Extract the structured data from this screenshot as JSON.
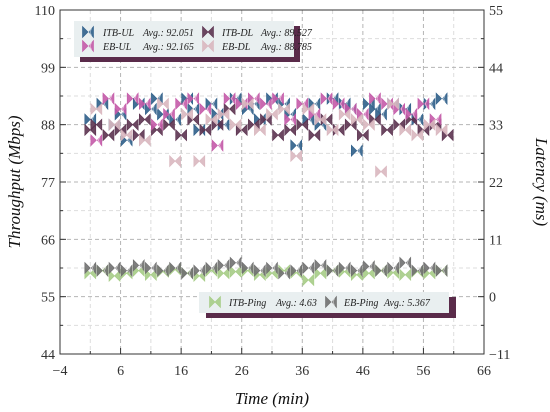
{
  "chart_data": {
    "type": "scatter",
    "xlabel": "Time (min)",
    "ylabel_left": "Throughput (Mbps)",
    "ylabel_right": "Latency (ms)",
    "xlim": [
      -4,
      66
    ],
    "ylim_left": [
      44,
      110
    ],
    "ylim_right": [
      -11,
      55
    ],
    "xticks": [
      "−4",
      "6",
      "16",
      "26",
      "36",
      "46",
      "56",
      "66"
    ],
    "yticks_left": [
      "44",
      "55",
      "66",
      "77",
      "88",
      "99",
      "110"
    ],
    "yticks_right": [
      "−11",
      "0",
      "11",
      "22",
      "33",
      "44",
      "55"
    ],
    "grid": true,
    "legends": {
      "throughput": "top-left",
      "ping": "bottom-right"
    },
    "series": [
      {
        "name": "ITB-UL",
        "avg_label": "Avg.: 92.051",
        "axis": "left",
        "color": "#2f5f8a",
        "marker": "left-bowtie",
        "x": [
          1,
          3,
          5,
          6,
          7,
          9,
          11,
          12,
          13,
          15,
          17,
          18,
          19,
          21,
          22,
          23,
          25,
          27,
          28,
          29,
          31,
          33,
          34,
          35,
          37,
          38,
          39,
          41,
          43,
          44,
          45,
          47,
          48,
          49,
          51,
          53,
          55,
          57,
          59
        ],
        "y": [
          89,
          92,
          88,
          90,
          85,
          92,
          91,
          93,
          90,
          89,
          93,
          91,
          87,
          92,
          90,
          88,
          93,
          91,
          92,
          89,
          93,
          92,
          90,
          84,
          89,
          92,
          88,
          93,
          92,
          91,
          83,
          92,
          91,
          90,
          92,
          91,
          89,
          92,
          93
        ]
      },
      {
        "name": "ITB-DL",
        "avg_label": "Avg.: 89.527",
        "axis": "left",
        "color": "#5c3350",
        "marker": "bowtie",
        "x": [
          1,
          2,
          4,
          6,
          8,
          9,
          10,
          12,
          14,
          16,
          18,
          20,
          22,
          24,
          26,
          28,
          30,
          32,
          34,
          36,
          38,
          40,
          42,
          44,
          46,
          48,
          50,
          52,
          54,
          56,
          58,
          60
        ],
        "y": [
          87,
          88,
          86,
          87,
          88,
          86,
          89,
          87,
          88,
          86,
          89,
          87,
          88,
          91,
          87,
          88,
          89,
          86,
          87,
          88,
          86,
          89,
          87,
          88,
          86,
          89,
          87,
          88,
          89,
          87,
          88,
          86
        ]
      },
      {
        "name": "EB-UL",
        "avg_label": "Avg.: 92.165",
        "axis": "left",
        "color": "#c45aa8",
        "marker": "left-bowtie",
        "x": [
          2,
          4,
          6,
          8,
          10,
          12,
          14,
          16,
          18,
          20,
          22,
          24,
          26,
          28,
          30,
          32,
          34,
          36,
          38,
          40,
          42,
          44,
          46,
          48,
          50,
          52,
          54,
          56,
          58
        ],
        "y": [
          85,
          93,
          91,
          93,
          92,
          88,
          90,
          92,
          93,
          91,
          84,
          93,
          92,
          93,
          92,
          93,
          89,
          92,
          90,
          93,
          92,
          91,
          90,
          93,
          92,
          91,
          90,
          92,
          89
        ]
      },
      {
        "name": "EB-DL",
        "avg_label": "Avg.: 88.785",
        "axis": "left",
        "color": "#d9b7bf",
        "marker": "bowtie",
        "x": [
          2,
          5,
          7,
          10,
          13,
          15,
          17,
          19,
          21,
          23,
          25,
          27,
          29,
          31,
          33,
          35,
          37,
          39,
          41,
          43,
          45,
          47,
          49,
          51,
          53,
          55,
          57,
          59
        ],
        "y": [
          91,
          88,
          86,
          85,
          92,
          81,
          90,
          81,
          89,
          90,
          88,
          92,
          87,
          90,
          91,
          82,
          91,
          89,
          87,
          90,
          89,
          88,
          79,
          92,
          87,
          86,
          88,
          87
        ]
      },
      {
        "name": "ITB-Ping",
        "avg_label": "Avg.: 4.63",
        "axis": "right",
        "color": "#a6cc86",
        "marker": "bowtie",
        "x": [
          1,
          3,
          5,
          7,
          9,
          11,
          13,
          15,
          17,
          19,
          21,
          23,
          25,
          27,
          29,
          31,
          33,
          35,
          37,
          39,
          41,
          43,
          45,
          47,
          49,
          51,
          53,
          55,
          57,
          59
        ],
        "y": [
          4.5,
          5,
          4,
          4.5,
          5,
          4.2,
          4.8,
          5.2,
          4.5,
          4,
          5,
          4.5,
          4.8,
          5,
          4.2,
          4.5,
          5,
          4.6,
          3.2,
          4.5,
          5,
          4.8,
          4.2,
          4.5,
          5,
          4.6,
          4.2,
          4.8,
          4.5,
          5
        ]
      },
      {
        "name": "EB-Ping",
        "avg_label": "Avg.: 5.367",
        "axis": "right",
        "color": "#707070",
        "marker": "left-bowtie",
        "x": [
          1,
          3,
          5,
          7,
          9,
          11,
          13,
          15,
          17,
          19,
          21,
          23,
          25,
          27,
          29,
          31,
          33,
          35,
          37,
          39,
          41,
          43,
          45,
          47,
          49,
          51,
          53,
          55,
          57,
          59
        ],
        "y": [
          5.5,
          5,
          5.5,
          5,
          6,
          5.5,
          5,
          5.5,
          4.5,
          5,
          5.5,
          6,
          6.5,
          5.5,
          5,
          5.5,
          4.5,
          5,
          5.5,
          6,
          5,
          5.5,
          5,
          5.8,
          5,
          5.5,
          6.5,
          5,
          5.5,
          5
        ]
      }
    ]
  }
}
